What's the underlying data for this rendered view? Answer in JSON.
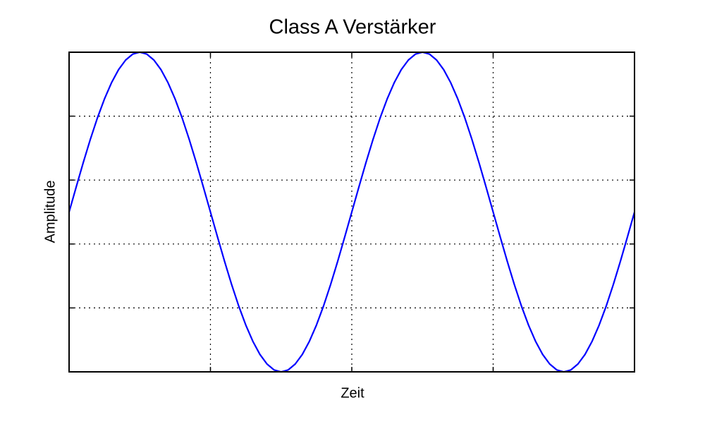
{
  "chart_data": {
    "type": "line",
    "title": "Class A Verstärker",
    "xlabel": "Zeit",
    "ylabel": "Amplitude",
    "x": [
      0,
      0.025,
      0.05,
      0.075,
      0.1,
      0.125,
      0.15,
      0.175,
      0.2,
      0.225,
      0.25,
      0.275,
      0.3,
      0.325,
      0.35,
      0.375,
      0.4,
      0.425,
      0.45,
      0.475,
      0.5,
      0.525,
      0.55,
      0.575,
      0.6,
      0.625,
      0.65,
      0.675,
      0.7,
      0.725,
      0.75,
      0.775,
      0.8,
      0.825,
      0.85,
      0.875,
      0.9,
      0.925,
      0.95,
      0.975,
      1,
      1.025,
      1.05,
      1.075,
      1.1,
      1.125,
      1.15,
      1.175,
      1.2,
      1.225,
      1.25,
      1.275,
      1.3,
      1.325,
      1.35,
      1.375,
      1.4,
      1.425,
      1.45,
      1.475,
      1.5,
      1.525,
      1.55,
      1.575,
      1.6,
      1.625,
      1.65,
      1.675,
      1.7,
      1.725,
      1.75,
      1.775,
      1.8,
      1.825,
      1.85,
      1.875,
      1.9,
      1.925,
      1.95,
      1.975,
      2
    ],
    "values": [
      0,
      0.156,
      0.309,
      0.454,
      0.588,
      0.707,
      0.809,
      0.891,
      0.951,
      0.988,
      1,
      0.988,
      0.951,
      0.891,
      0.809,
      0.707,
      0.588,
      0.454,
      0.309,
      0.156,
      0,
      -0.156,
      -0.309,
      -0.454,
      -0.588,
      -0.707,
      -0.809,
      -0.891,
      -0.951,
      -0.988,
      -1,
      -0.988,
      -0.951,
      -0.891,
      -0.809,
      -0.707,
      -0.588,
      -0.454,
      -0.309,
      -0.156,
      0,
      0.156,
      0.309,
      0.454,
      0.588,
      0.707,
      0.809,
      0.891,
      0.951,
      0.988,
      1,
      0.988,
      0.951,
      0.891,
      0.809,
      0.707,
      0.588,
      0.454,
      0.309,
      0.156,
      0,
      -0.156,
      -0.309,
      -0.454,
      -0.588,
      -0.707,
      -0.809,
      -0.891,
      -0.951,
      -0.988,
      -1,
      -0.988,
      -0.951,
      -0.891,
      -0.809,
      -0.707,
      -0.588,
      -0.454,
      -0.309,
      -0.156,
      0
    ],
    "color": "#0000ff",
    "xlim": [
      0,
      2
    ],
    "xticks": [
      0,
      0.5,
      1,
      1.5,
      2
    ],
    "ylim": [
      -1,
      1
    ],
    "yticks": [
      -1,
      -0.6,
      -0.2,
      0.2,
      0.6,
      1
    ],
    "grid": true,
    "tick_labels": false
  }
}
